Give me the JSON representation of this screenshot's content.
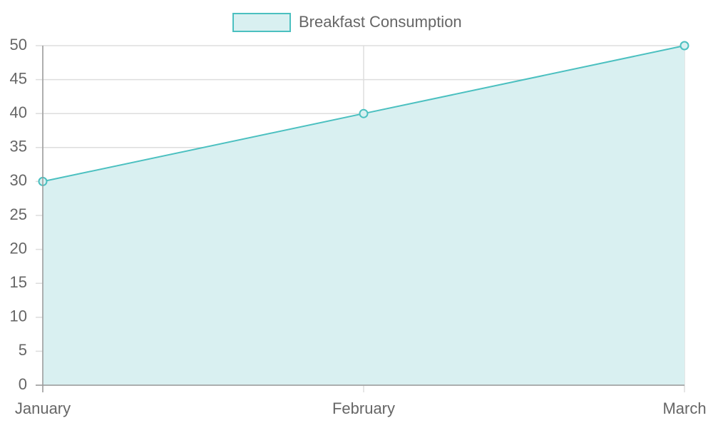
{
  "chart_data": {
    "type": "line",
    "categories": [
      "January",
      "February",
      "March"
    ],
    "series": [
      {
        "name": "Breakfast Consumption",
        "color": "#4bc0c0",
        "fill_color": "#d9f0f1",
        "values": [
          30,
          40,
          50
        ]
      }
    ],
    "ylim": [
      0,
      50
    ],
    "yticks": [
      0,
      5,
      10,
      15,
      20,
      25,
      30,
      35,
      40,
      45,
      50
    ],
    "grid": true,
    "fill": true,
    "legend": "top"
  }
}
